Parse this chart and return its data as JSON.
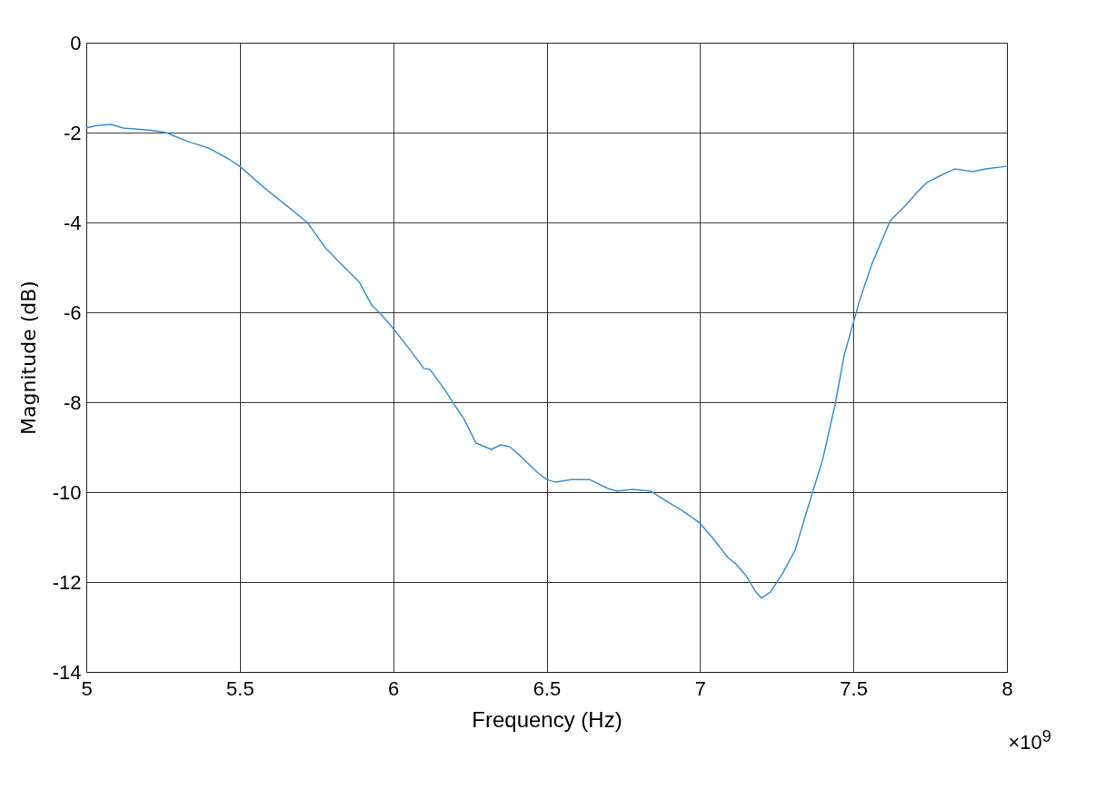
{
  "chart_data": {
    "type": "line",
    "xlabel": "Frequency (Hz)",
    "ylabel": "Magnitude (dB)",
    "annotations": [
      "×10$^{9}$"
    ],
    "xlim": [
      5,
      8
    ],
    "xticks": [
      5,
      5.5,
      6,
      6.5,
      7,
      7.5,
      8
    ],
    "ylim": [
      -14,
      0
    ],
    "yticks": [
      -14,
      -12,
      -10,
      -8,
      -6,
      -4,
      -2,
      0
    ],
    "grid": true,
    "line_style": "solid",
    "marker": "none",
    "series": [
      {
        "color": "#3b8fd0",
        "x": [
          5,
          5.03,
          5.08,
          5.12,
          5.21,
          5.26,
          5.28,
          5.34,
          5.4,
          5.46,
          5.5,
          5.58,
          5.67,
          5.72,
          5.78,
          5.84,
          5.89,
          5.93,
          5.96,
          6,
          6.05,
          6.1,
          6.12,
          6.17,
          6.2,
          6.23,
          6.27,
          6.32,
          6.35,
          6.38,
          6.41,
          6.47,
          6.5,
          6.53,
          6.58,
          6.64,
          6.7,
          6.73,
          6.78,
          6.84,
          6.9,
          6.94,
          7,
          7.04,
          7.09,
          7.12,
          7.15,
          7.18,
          7.2,
          7.23,
          7.27,
          7.31,
          7.35,
          7.4,
          7.44,
          7.47,
          7.52,
          7.56,
          7.62,
          7.67,
          7.71,
          7.74,
          7.78,
          7.83,
          7.89,
          7.93,
          8
        ],
        "values": [
          -1.9,
          -1.85,
          -1.82,
          -1.9,
          -1.95,
          -2.0,
          -2.06,
          -2.22,
          -2.35,
          -2.57,
          -2.75,
          -3.23,
          -3.72,
          -4.0,
          -4.57,
          -4.99,
          -5.33,
          -5.84,
          -6.04,
          -6.36,
          -6.79,
          -7.25,
          -7.27,
          -7.74,
          -8.06,
          -8.36,
          -8.91,
          -9.05,
          -8.95,
          -8.99,
          -9.17,
          -9.56,
          -9.72,
          -9.78,
          -9.72,
          -9.72,
          -9.92,
          -9.98,
          -9.94,
          -9.98,
          -10.24,
          -10.4,
          -10.69,
          -11.01,
          -11.45,
          -11.62,
          -11.86,
          -12.2,
          -12.36,
          -12.22,
          -11.8,
          -11.29,
          -10.38,
          -9.27,
          -8.06,
          -6.95,
          -5.74,
          -4.93,
          -3.96,
          -3.62,
          -3.31,
          -3.11,
          -2.97,
          -2.81,
          -2.87,
          -2.81,
          -2.75
        ]
      }
    ]
  }
}
